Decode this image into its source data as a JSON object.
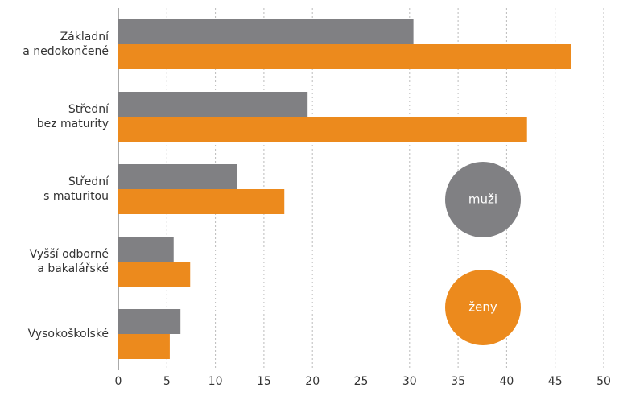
{
  "chart_data": {
    "type": "bar",
    "orientation": "horizontal",
    "categories": [
      "Základní\na nedokončené",
      "Střední\nbez maturity",
      "Střední\ns maturitou",
      "Vyšší odborné\na bakalářské",
      "Vysokoškolské"
    ],
    "series": [
      {
        "name": "muži",
        "color": "#808083",
        "values": [
          30.4,
          19.5,
          12.2,
          5.7,
          6.4
        ]
      },
      {
        "name": "ženy",
        "color": "#ec8a1d",
        "values": [
          46.6,
          42.1,
          17.1,
          7.4,
          5.3
        ]
      }
    ],
    "xlim": [
      0,
      50
    ],
    "xticks": [
      0,
      5,
      10,
      15,
      20,
      25,
      30,
      35,
      40,
      45,
      50
    ],
    "grid": true
  }
}
